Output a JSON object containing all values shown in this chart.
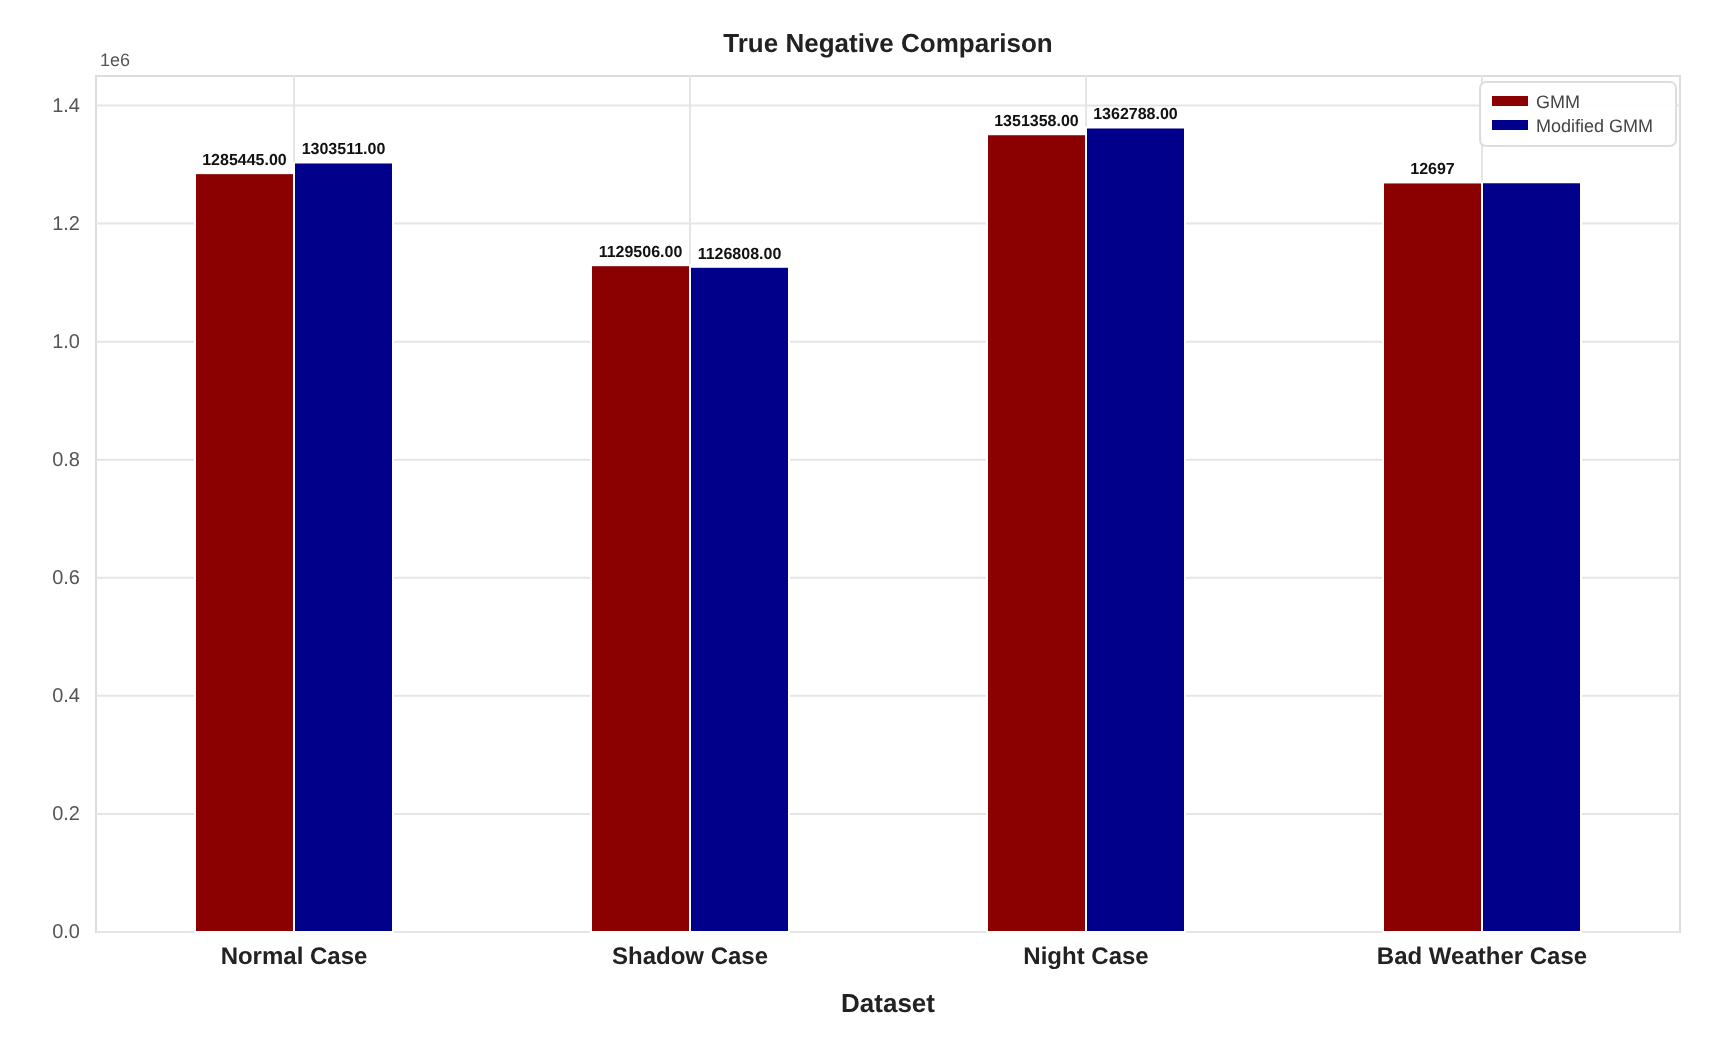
{
  "chart_data": {
    "type": "bar",
    "title": "True Negative Comparison",
    "xlabel": "Dataset",
    "categories": [
      "Normal Case",
      "Shadow Case",
      "Night Case",
      "Bad Weather Case"
    ],
    "series": [
      {
        "name": "GMM",
        "color": "#8b0000",
        "values": [
          1.285445,
          1.129506,
          1.351358,
          1.2697
        ]
      },
      {
        "name": "Modified GMM",
        "color": "#00008b",
        "values": [
          1.303511,
          1.126808,
          1.362788,
          1.27
        ]
      }
    ],
    "ylim": [
      0,
      1.45
    ],
    "yticks": [
      {
        "value": 0,
        "label": "0.0"
      },
      0.2,
      0.4,
      0.6,
      0.8,
      {
        "value": 1,
        "label": "1.0"
      },
      1.2,
      1.4
    ],
    "annotations": [
      "1e6",
      {
        "text": "1285445.00",
        "x": "Normal Case",
        "y": 1.285445
      },
      {
        "text": "1303511.00",
        "x": "Normal Case",
        "y": 1.303511
      },
      {
        "text": "1129506.00",
        "x": "Shadow Case",
        "y": 1.129506
      },
      {
        "text": "1126808.00",
        "x": "Shadow Case",
        "y": 1.126808
      },
      {
        "text": "1351358.00",
        "x": "Night Case",
        "y": 1.351358
      },
      {
        "text": "1362788.00",
        "x": "Night Case",
        "y": 1.362788
      },
      {
        "text": "12697",
        "x": "Bad Weather Case",
        "y": 1.2697
      }
    ],
    "grid": true,
    "legend": "top right"
  }
}
